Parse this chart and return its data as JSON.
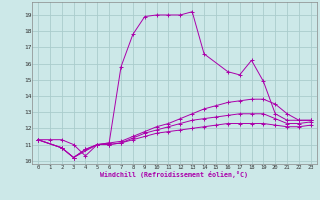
{
  "xlabel": "Windchill (Refroidissement éolien,°C)",
  "bg_color": "#cce8e8",
  "grid_color": "#aacccc",
  "line_color": "#aa00aa",
  "xlim": [
    -0.5,
    23.5
  ],
  "ylim": [
    9.8,
    19.8
  ],
  "xticks": [
    0,
    1,
    2,
    3,
    4,
    5,
    6,
    7,
    8,
    9,
    10,
    11,
    12,
    13,
    14,
    15,
    16,
    17,
    18,
    19,
    20,
    21,
    22,
    23
  ],
  "yticks": [
    10,
    11,
    12,
    13,
    14,
    15,
    16,
    17,
    18,
    19
  ],
  "series": [
    {
      "x": [
        0,
        1,
        2,
        3,
        4,
        5,
        6,
        7,
        8,
        9,
        10,
        11,
        12,
        13,
        14,
        16,
        17,
        18,
        19,
        20,
        21,
        22,
        23
      ],
      "y": [
        11.3,
        11.3,
        11.3,
        11.0,
        10.3,
        11.0,
        11.1,
        15.8,
        17.8,
        18.9,
        19.0,
        19.0,
        19.0,
        19.2,
        16.6,
        15.5,
        15.3,
        16.2,
        14.9,
        12.9,
        12.5,
        12.5,
        12.5
      ]
    },
    {
      "x": [
        0,
        2,
        3,
        4,
        5,
        6,
        7,
        8,
        9,
        10,
        11,
        12,
        13,
        14,
        15,
        16,
        17,
        18,
        19,
        20,
        21,
        22,
        23
      ],
      "y": [
        11.3,
        10.8,
        10.2,
        10.7,
        11.0,
        11.1,
        11.2,
        11.5,
        11.8,
        12.1,
        12.3,
        12.6,
        12.9,
        13.2,
        13.4,
        13.6,
        13.7,
        13.8,
        13.8,
        13.5,
        12.9,
        12.5,
        12.5
      ]
    },
    {
      "x": [
        0,
        2,
        3,
        4,
        5,
        6,
        7,
        8,
        9,
        10,
        11,
        12,
        13,
        14,
        15,
        16,
        17,
        18,
        19,
        20,
        21,
        22,
        23
      ],
      "y": [
        11.3,
        10.8,
        10.2,
        10.7,
        11.0,
        11.0,
        11.1,
        11.4,
        11.7,
        11.9,
        12.1,
        12.3,
        12.5,
        12.6,
        12.7,
        12.8,
        12.9,
        12.9,
        12.9,
        12.6,
        12.3,
        12.3,
        12.4
      ]
    },
    {
      "x": [
        0,
        2,
        3,
        5,
        6,
        7,
        8,
        9,
        10,
        11,
        12,
        13,
        14,
        15,
        16,
        17,
        18,
        19,
        20,
        21,
        22,
        23
      ],
      "y": [
        11.3,
        10.8,
        10.2,
        11.0,
        11.0,
        11.1,
        11.3,
        11.5,
        11.7,
        11.8,
        11.9,
        12.0,
        12.1,
        12.2,
        12.3,
        12.3,
        12.3,
        12.3,
        12.2,
        12.1,
        12.1,
        12.2
      ]
    }
  ]
}
